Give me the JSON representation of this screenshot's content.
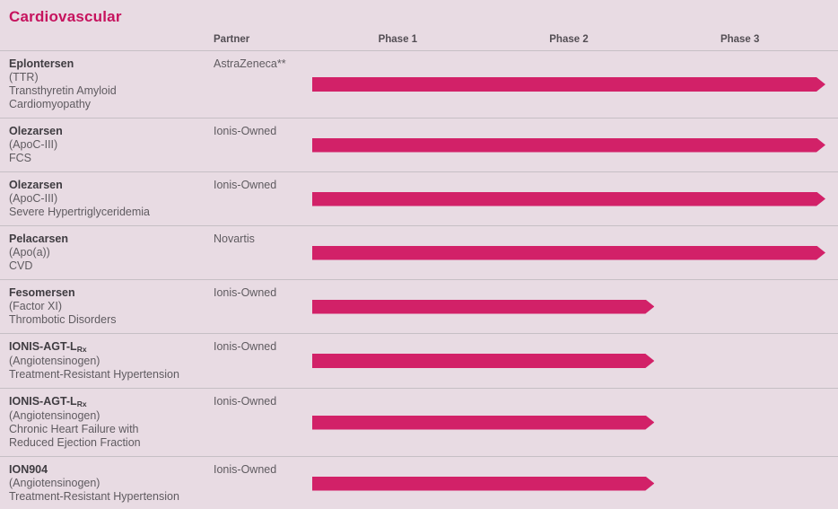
{
  "page": {
    "title": "Cardiovascular",
    "background_color": "#e8dbe3",
    "bar_color": "#d22168",
    "title_color": "#c6135e",
    "separator_color": "#c6bfc5"
  },
  "columns": {
    "partner": "Partner"
  },
  "chart_data": {
    "type": "bar",
    "orientation": "horizontal",
    "title": "Cardiovascular",
    "x_ticks": [
      "Phase 1",
      "Phase 2",
      "Phase 3"
    ],
    "xlim": [
      0,
      3
    ],
    "value_meaning": "clinical development phase reached (arrow bar length)",
    "rows": [
      {
        "drug": "Eplontersen",
        "drug_subscript": "",
        "details": [
          "(TTR)",
          "Transthyretin Amyloid",
          "Cardiomyopathy"
        ],
        "partner": "AstraZeneca**",
        "phase_reached": 3
      },
      {
        "drug": "Olezarsen",
        "drug_subscript": "",
        "details": [
          "(ApoC-III)",
          "FCS"
        ],
        "partner": "Ionis-Owned",
        "phase_reached": 3
      },
      {
        "drug": "Olezarsen",
        "drug_subscript": "",
        "details": [
          "(ApoC-III)",
          "Severe Hypertriglyceridemia"
        ],
        "partner": "Ionis-Owned",
        "phase_reached": 3
      },
      {
        "drug": "Pelacarsen",
        "drug_subscript": "",
        "details": [
          "(Apo(a))",
          "CVD"
        ],
        "partner": "Novartis",
        "phase_reached": 3
      },
      {
        "drug": "Fesomersen",
        "drug_subscript": "",
        "details": [
          "(Factor XI)",
          "Thrombotic Disorders"
        ],
        "partner": "Ionis-Owned",
        "phase_reached": 2
      },
      {
        "drug": "IONIS-AGT-L",
        "drug_subscript": "Rx",
        "details": [
          "(Angiotensinogen)",
          "Treatment-Resistant Hypertension"
        ],
        "partner": "Ionis-Owned",
        "phase_reached": 2
      },
      {
        "drug": "IONIS-AGT-L",
        "drug_subscript": "Rx",
        "details": [
          "(Angiotensinogen)",
          "Chronic Heart Failure with",
          "Reduced Ejection Fraction"
        ],
        "partner": "Ionis-Owned",
        "phase_reached": 2
      },
      {
        "drug": "ION904",
        "drug_subscript": "",
        "details": [
          "(Angiotensinogen)",
          "Treatment-Resistant Hypertension"
        ],
        "partner": "Ionis-Owned",
        "phase_reached": 2
      }
    ]
  }
}
